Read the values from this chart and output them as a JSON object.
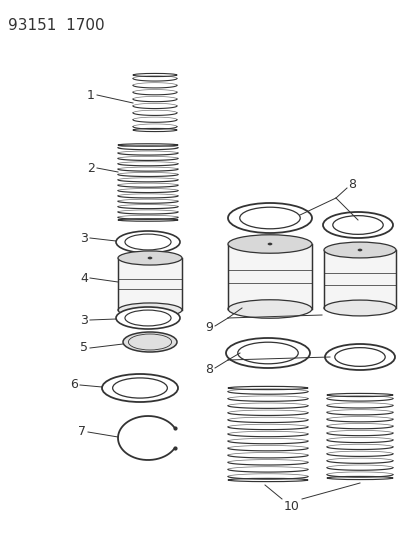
{
  "title": "93151  1700",
  "bg_color": "#ffffff",
  "line_color": "#333333",
  "title_fontsize": 11,
  "label_fontsize": 9,
  "figsize": [
    4.14,
    5.33
  ],
  "dpi": 100
}
